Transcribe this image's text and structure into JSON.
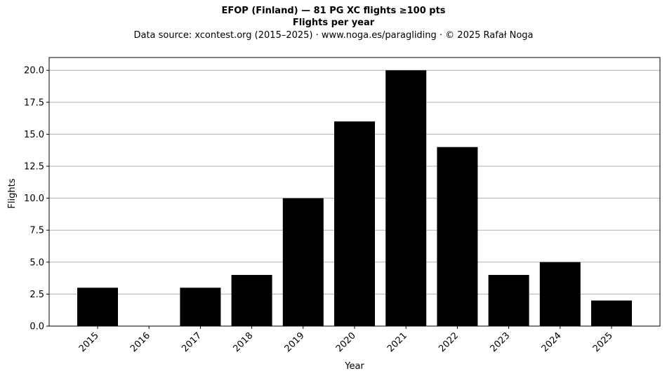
{
  "chart_data": {
    "type": "bar",
    "title": "EFOP (Finland)  —  81 PG XC flights ≥100 pts",
    "subtitle": "Flights per year",
    "source": "Data source: xcontest.org (2015–2025)  ·  www.noga.es/paragliding  ·  © 2025 Rafał Noga",
    "xlabel": "Year",
    "ylabel": "Flights",
    "categories": [
      "2015",
      "2016",
      "2017",
      "2018",
      "2019",
      "2020",
      "2021",
      "2022",
      "2023",
      "2024",
      "2025"
    ],
    "values": [
      3,
      0,
      3,
      4,
      10,
      16,
      20,
      14,
      4,
      5,
      2
    ],
    "ylim": [
      0,
      21
    ],
    "yticks": [
      "0.0",
      "2.5",
      "5.0",
      "7.5",
      "10.0",
      "12.5",
      "15.0",
      "17.5",
      "20.0"
    ],
    "grid": "horizontal",
    "bar_color": "#000000",
    "grid_color": "#b0b0b0"
  }
}
